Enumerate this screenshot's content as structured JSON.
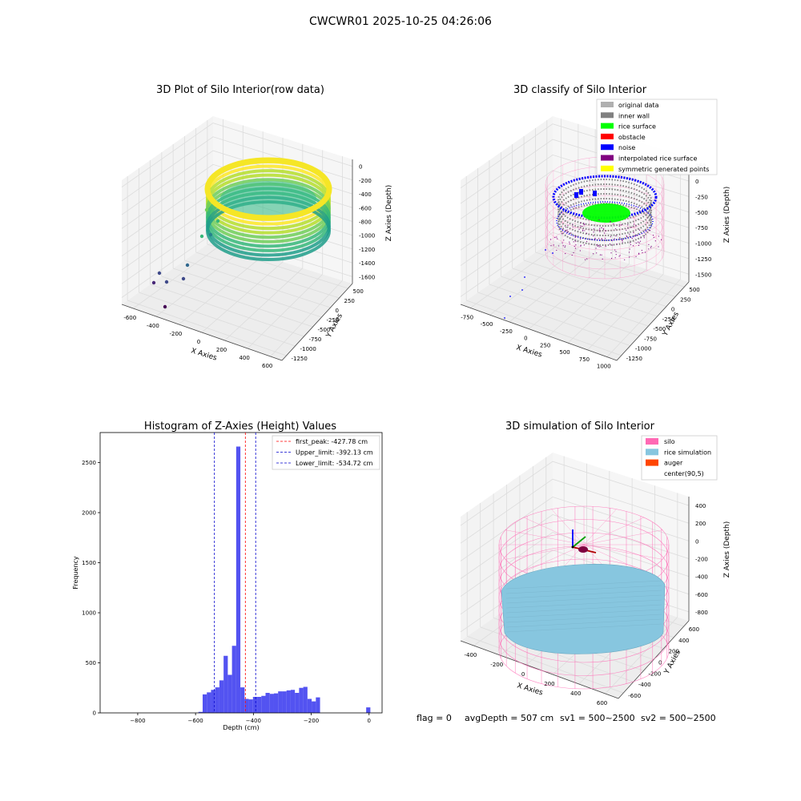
{
  "figure": {
    "suptitle": "CWCWR01 2025-10-25 04:26:06",
    "footer": {
      "flag": "flag = 0",
      "avg": "avgDepth = 507 cm",
      "sv1": "sv1 = 500~2500",
      "sv2": "sv2 = 500~2500"
    }
  },
  "colors": {
    "pane": "#f2f2f2",
    "grid": "#dcdcdc",
    "hist_bar": "#4a4af0",
    "peak_line": "#ff0000",
    "limit_line": "#0000cc",
    "silo": "#ff69b4",
    "rice_sim": "#87c6df",
    "auger": "#ff4500",
    "original": "#b0b0b0",
    "inner_wall": "#808080",
    "rice_surface": "#00ff00",
    "obstacle": "#ff0000",
    "noise": "#0000ff",
    "interpolated": "#800080",
    "symmetric": "#ffff00"
  },
  "chart_data": [
    {
      "type": "scatter",
      "title": "3D Plot of Silo Interior(row data)",
      "xlabel": "X Axies",
      "ylabel": "Y Axies",
      "zlabel": "Z Axies (Depth)",
      "x_ticks": [
        "-600",
        "-400",
        "-200",
        "0",
        "200",
        "400",
        "600"
      ],
      "y_ticks": [
        "500",
        "250",
        "0",
        "-250",
        "-500",
        "-750",
        "-1000",
        "-1250"
      ],
      "z_ticks": [
        "0",
        "-200",
        "-400",
        "-600",
        "-800",
        "-1000",
        "-1200",
        "-1400",
        "-1600"
      ],
      "xlim": [
        -700,
        650
      ],
      "ylim": [
        -1350,
        650
      ],
      "zlim": [
        -1700,
        100
      ],
      "colormap": "viridis"
    },
    {
      "type": "scatter",
      "title": "3D classify of Silo Interior",
      "xlabel": "X Axies",
      "ylabel": "Y Axies",
      "zlabel": "Z Axies (Depth)",
      "x_ticks": [
        "-750",
        "-500",
        "-250",
        "0",
        "250",
        "500",
        "750",
        "1000"
      ],
      "y_ticks": [
        "500",
        "250",
        "0",
        "-250",
        "-500",
        "-750",
        "-1000",
        "-1250"
      ],
      "z_ticks": [
        "250",
        "0",
        "-250",
        "-500",
        "-750",
        "-1000",
        "-1250",
        "-1500"
      ],
      "xlim": [
        -900,
        1050
      ],
      "ylim": [
        -1350,
        650
      ],
      "zlim": [
        -1600,
        300
      ],
      "legend": [
        {
          "label": "original data",
          "color": "#b0b0b0"
        },
        {
          "label": "inner wall",
          "color": "#808080"
        },
        {
          "label": "rice surface",
          "color": "#00ff00"
        },
        {
          "label": "obstacle",
          "color": "#ff0000"
        },
        {
          "label": "noise",
          "color": "#0000ff"
        },
        {
          "label": "interpolated rice surface",
          "color": "#800080"
        },
        {
          "label": "symmetric generated points",
          "color": "#ffff00"
        }
      ]
    },
    {
      "type": "bar",
      "title": "Histogram of Z-Axies (Height) Values",
      "xlabel": "Depth (cm)",
      "ylabel": "Frequency",
      "xlim": [
        -930,
        45
      ],
      "ylim": [
        0,
        2800
      ],
      "x_ticks": [
        -800,
        -600,
        -400,
        -200,
        0
      ],
      "y_ticks": [
        0,
        500,
        1000,
        1500,
        2000,
        2500
      ],
      "bin_width": 14.5,
      "bin_starts": [
        -590,
        -575.5,
        -561,
        -546.5,
        -532,
        -517.5,
        -503,
        -488.5,
        -474,
        -459.5,
        -445,
        -430.5,
        -416,
        -401.5,
        -387,
        -372.5,
        -358,
        -343.5,
        -329,
        -314.5,
        -300,
        -285.5,
        -271,
        -256.5,
        -242,
        -227.5,
        -213,
        -198.5,
        -184,
        -169.5,
        -155,
        -140.5,
        -126,
        -111.5,
        -97,
        -82.5,
        -68,
        -53.5,
        -39,
        -24.5,
        -10
      ],
      "values": [
        10,
        185,
        205,
        230,
        255,
        325,
        570,
        380,
        670,
        2660,
        255,
        140,
        135,
        160,
        160,
        170,
        200,
        190,
        195,
        215,
        215,
        225,
        230,
        200,
        250,
        260,
        140,
        115,
        155,
        0,
        0,
        0,
        0,
        0,
        0,
        0,
        0,
        0,
        0,
        0,
        55
      ],
      "vlines": [
        {
          "label": "first_peak: -427.78 cm",
          "value": -427.78,
          "color": "#ff0000"
        },
        {
          "label": "Upper_limit: -392.13 cm",
          "value": -392.13,
          "color": "#0000cc"
        },
        {
          "label": "Lower_limit: -534.72 cm",
          "value": -534.72,
          "color": "#0000cc"
        }
      ]
    },
    {
      "type": "scatter",
      "title": "3D simulation of Silo Interior",
      "xlabel": "X Axies",
      "ylabel": "Y Axies",
      "zlabel": "Z Axies (Depth)",
      "x_ticks": [
        "-400",
        "-200",
        "0",
        "200",
        "400",
        "600"
      ],
      "y_ticks": [
        "600",
        "400",
        "200",
        "0",
        "-200",
        "-400",
        "-600"
      ],
      "z_ticks": [
        "400",
        "200",
        "0",
        "-200",
        "-400",
        "-600",
        "-800"
      ],
      "xlim": [
        -500,
        700
      ],
      "ylim": [
        -700,
        700
      ],
      "zlim": [
        -900,
        450
      ],
      "legend": [
        {
          "label": "silo",
          "color": "#ff69b4"
        },
        {
          "label": "rice simulation",
          "color": "#87c6df"
        },
        {
          "label": "auger",
          "color": "#ff4500"
        },
        {
          "label": "center(90,5)",
          "color": ""
        }
      ]
    }
  ]
}
